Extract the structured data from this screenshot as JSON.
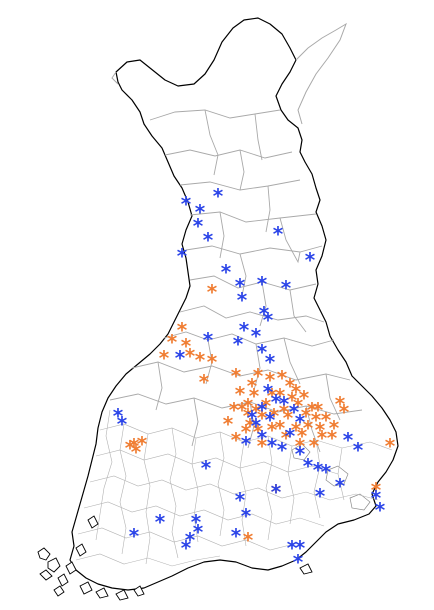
{
  "map": {
    "type": "point-map",
    "region": "Finland",
    "colors": {
      "background": "#ffffff",
      "coastline": "#000000",
      "municipality_borders": "#a9a9a9",
      "series_a": "#2b44e8",
      "series_b": "#f07d32"
    },
    "marker_symbol": "*",
    "series": [
      {
        "key": "blue",
        "color": "#2b44e8",
        "count": 62
      },
      {
        "key": "orange",
        "color": "#f07d32",
        "count": 66
      }
    ]
  }
}
